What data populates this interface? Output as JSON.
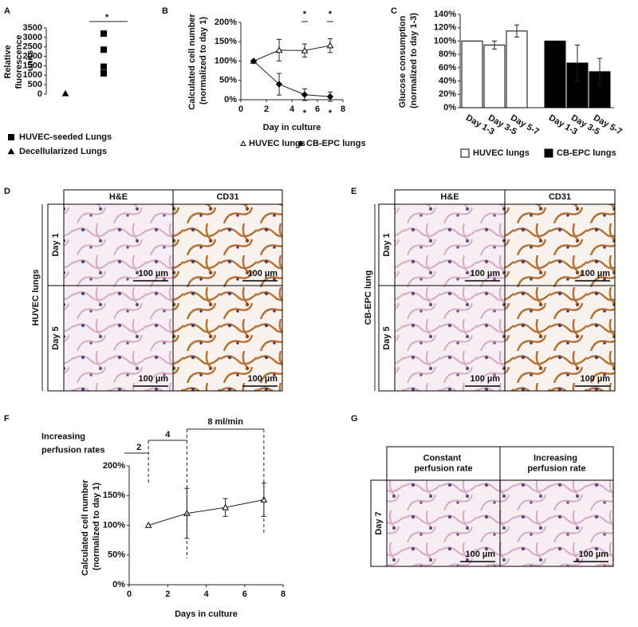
{
  "chart_data": [
    {
      "panel_label": "A",
      "type": "strip",
      "ylabel": "Relative fluorescence units",
      "ylim": [
        0,
        3500
      ],
      "yticks": [
        0,
        500,
        1000,
        1500,
        2000,
        2500,
        3000,
        3500
      ],
      "annotations": [
        "*"
      ],
      "series": [
        {
          "name": "HUVEC-seeded Lungs",
          "marker": "square",
          "color": "#000000",
          "values": [
            3200,
            2350,
            1450,
            1100
          ]
        },
        {
          "name": "Decellularized Lungs",
          "marker": "triangle",
          "color": "#000000",
          "values": [
            30
          ]
        }
      ]
    },
    {
      "panel_label": "B",
      "type": "line",
      "x": [
        1,
        3,
        5,
        7
      ],
      "xlim": [
        0,
        8
      ],
      "xticks": [
        0,
        2,
        4,
        6,
        8
      ],
      "ylim": [
        0,
        200
      ],
      "yticks": [
        {
          "value": 0,
          "label": "0%"
        },
        {
          "value": 50,
          "label": "50%"
        },
        {
          "value": 100,
          "label": "100%"
        },
        {
          "value": 150,
          "label": "150%"
        },
        {
          "value": 200,
          "label": "200%"
        }
      ],
      "xlabel": "Day in culture",
      "ylabel": "Calculated cell number (normalized to day 1)",
      "annotations": [
        "*",
        "*",
        "*",
        "*"
      ],
      "series": [
        {
          "name": "HUVEC lungs",
          "marker": "triangle",
          "color": "#ffffff",
          "values": [
            100,
            128,
            127,
            140
          ],
          "errors": [
            null,
            28,
            17,
            18
          ]
        },
        {
          "name": "CB-EPC lungs",
          "marker": "diamond",
          "color": "#000000",
          "values": [
            100,
            40,
            13,
            8
          ],
          "errors": [
            null,
            28,
            15,
            12
          ]
        }
      ]
    },
    {
      "panel_label": "C",
      "type": "bar",
      "categories": [
        "Day 1-3",
        "Day 3-5",
        "Day 5-7"
      ],
      "ylim": [
        0,
        140
      ],
      "yticks": [
        {
          "value": 0,
          "label": "0%"
        },
        {
          "value": 20,
          "label": "20%"
        },
        {
          "value": 40,
          "label": "40%"
        },
        {
          "value": 60,
          "label": "60%"
        },
        {
          "value": 80,
          "label": "80%"
        },
        {
          "value": 100,
          "label": "100%"
        },
        {
          "value": 120,
          "label": "120%"
        },
        {
          "value": 140,
          "label": "140%"
        }
      ],
      "ylabel": "Glucose consumption (normalized to day 1-3)",
      "series": [
        {
          "name": "HUVEC lungs",
          "color": "#ffffff",
          "values": [
            100,
            94,
            115
          ],
          "errors": [
            null,
            6,
            9
          ]
        },
        {
          "name": "CB-EPC lungs",
          "color": "#000000",
          "values": [
            100,
            67,
            54
          ],
          "errors": [
            null,
            27,
            20
          ]
        }
      ]
    },
    {
      "panel_label": "F",
      "type": "line",
      "x": [
        1,
        3,
        5,
        7
      ],
      "xlim": [
        0,
        8
      ],
      "xticks": [
        0,
        2,
        4,
        6,
        8
      ],
      "ylim": [
        0,
        200
      ],
      "yticks": [
        {
          "value": 0,
          "label": "0%"
        },
        {
          "value": 50,
          "label": "50%"
        },
        {
          "value": 100,
          "label": "100%"
        },
        {
          "value": 150,
          "label": "150%"
        },
        {
          "value": 200,
          "label": "200%"
        }
      ],
      "xlabel": "Days in culture",
      "ylabel": "Calculated cell number (normalized to day 1)",
      "annotations": [
        "Increasing perfusion rates",
        "2",
        "4",
        "8 ml/min"
      ],
      "series": [
        {
          "marker": "triangle",
          "color": "#ffffff",
          "values": [
            100,
            120,
            130,
            143
          ],
          "errors": [
            null,
            42,
            15,
            28
          ]
        }
      ]
    }
  ],
  "image_panels": [
    {
      "panel_label": "D",
      "group_label": "HUVEC lungs",
      "columns": [
        "H&E",
        "CD31"
      ],
      "rows": [
        "Day 1",
        "Day 5"
      ],
      "scale_bar": "100 µm"
    },
    {
      "panel_label": "E",
      "group_label": "CB-EPC lung",
      "columns": [
        "H&E",
        "CD31"
      ],
      "rows": [
        "Day 1",
        "Day 5"
      ],
      "scale_bar": "100 µm"
    },
    {
      "panel_label": "G",
      "columns": [
        "Constant perfusion rate",
        "Increasing perfusion rate"
      ],
      "rows": [
        "Day 7"
      ],
      "scale_bar": "100 µm"
    }
  ]
}
